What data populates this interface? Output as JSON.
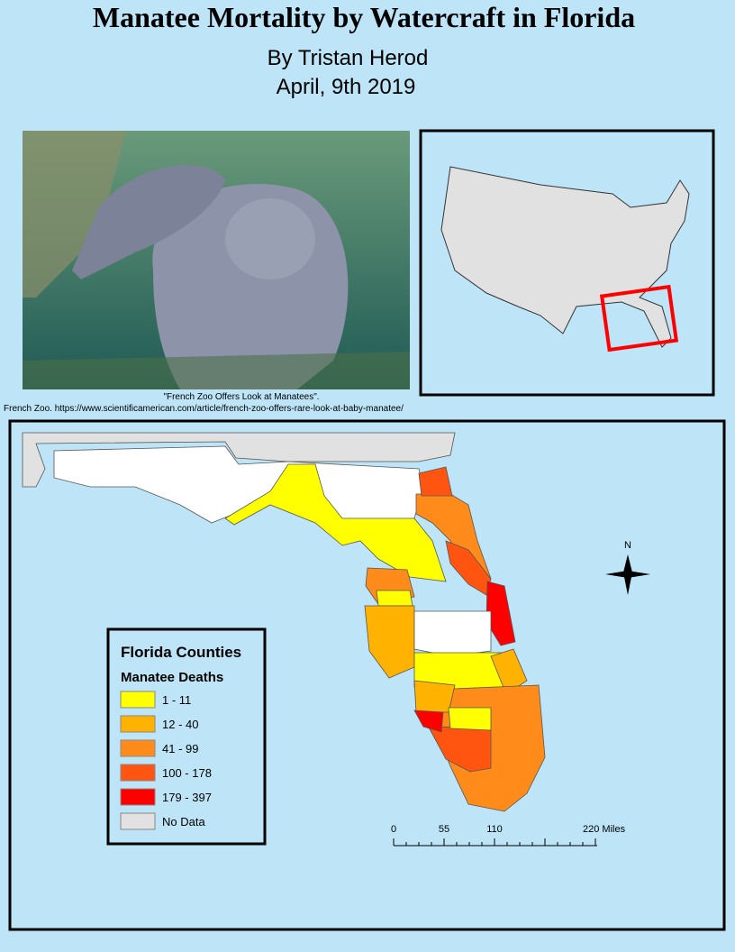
{
  "header": {
    "title": "Manatee Mortality by Watercraft in Florida",
    "author": "By Tristan Herod",
    "date": "April, 9th 2019"
  },
  "photo": {
    "caption": [
      "\"French Zoo Offers Look at Manatees\".",
      "French Zoo. https://www.scientificamerican.com/article/french-zoo-offers-rare-look-at-baby-manatee/"
    ]
  },
  "legend": {
    "title": "Florida Counties",
    "subtitle": "Manatee Deaths",
    "classes": [
      {
        "label": "1 - 11",
        "color": "#ffff00"
      },
      {
        "label": "12 - 40",
        "color": "#ffb300"
      },
      {
        "label": "41 - 99",
        "color": "#ff8c1a"
      },
      {
        "label": "100 - 178",
        "color": "#ff5511"
      },
      {
        "label": "179 - 397",
        "color": "#ff0000"
      },
      {
        "label": "No Data",
        "color": "#e1e1e1"
      }
    ]
  },
  "scale_bar": {
    "labels": [
      "0",
      "55",
      "110",
      "220 Miles"
    ]
  },
  "north_arrow": {
    "label": "N"
  }
}
